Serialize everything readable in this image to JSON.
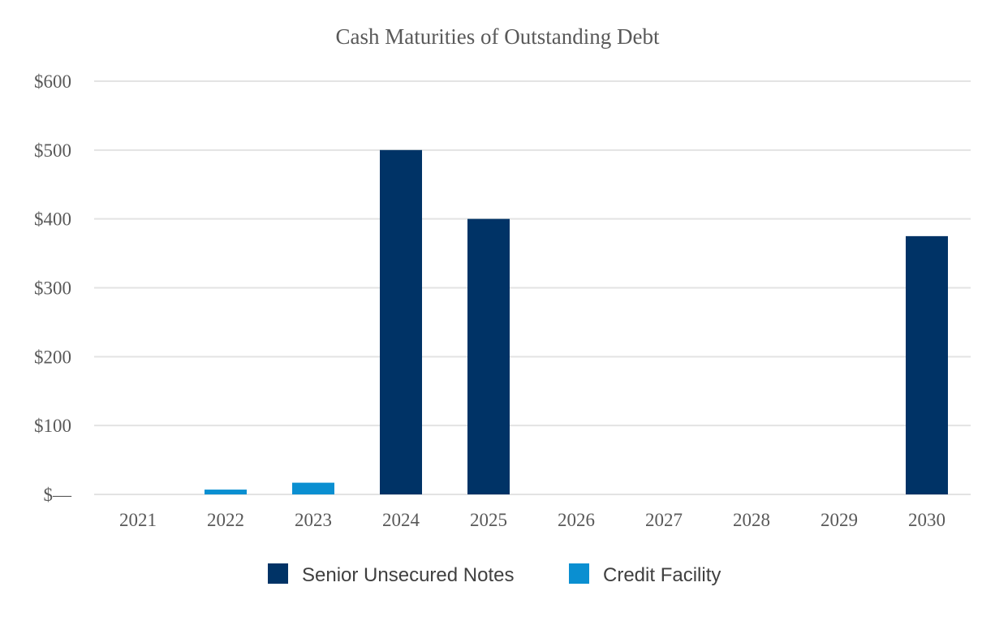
{
  "chart_data": {
    "type": "bar",
    "title": "Cash Maturities of Outstanding Debt",
    "xlabel": "",
    "ylabel": "",
    "ylim": [
      0,
      600
    ],
    "yticks": [
      0,
      100,
      200,
      300,
      400,
      500,
      600
    ],
    "ytick_labels": [
      "$—",
      "$100",
      "$200",
      "$300",
      "$400",
      "$500",
      "$600"
    ],
    "categories": [
      "2021",
      "2022",
      "2023",
      "2024",
      "2025",
      "2026",
      "2027",
      "2028",
      "2029",
      "2030"
    ],
    "stacked": true,
    "grid": true,
    "legend_position": "bottom-center",
    "series": [
      {
        "name": "Senior Unsecured Notes",
        "color": "#003366",
        "values": [
          0,
          0,
          0,
          500,
          400,
          0,
          0,
          0,
          0,
          375
        ]
      },
      {
        "name": "Credit Facility",
        "color": "#0a8fd1",
        "values": [
          0,
          7,
          17,
          0,
          0,
          0,
          0,
          0,
          0,
          0
        ]
      }
    ]
  }
}
